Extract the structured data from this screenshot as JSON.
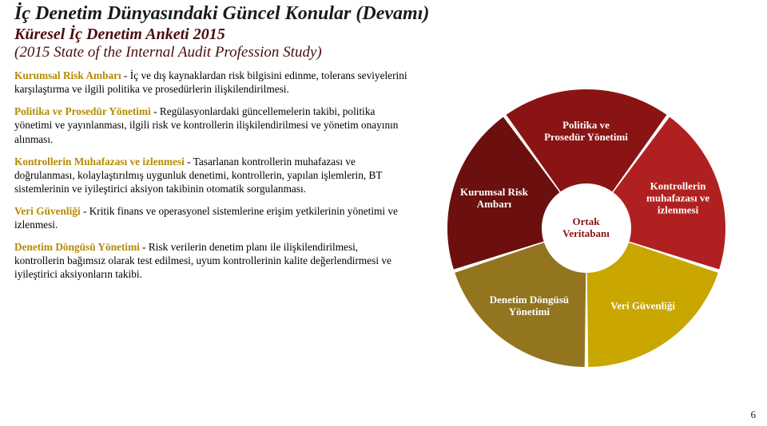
{
  "title": "İç Denetim Dünyasındaki Güncel Konular (Devamı)",
  "subtitle": "Küresel İç Denetim Anketi 2015",
  "subtitle2": "(2015 State of the Internal Audit  Profession Study)",
  "paragraphs": [
    {
      "lead": "Kurumsal Risk Ambarı",
      "body": " - İç ve dış kaynaklardan risk bilgisini edinme,  tolerans seviyelerini karşılaştırma ve ilgili politika ve prosedürlerin ilişkilendirilmesi."
    },
    {
      "lead": "Politika ve Prosedür Yönetimi",
      "body": " - Regülasyonlardaki güncellemelerin takibi, politika yönetimi ve yayınlanması, ilgili risk ve kontrollerin ilişkilendirilmesi ve yönetim onayının alınması."
    },
    {
      "lead": "Kontrollerin Muhafazası ve izlenmesi",
      "body": " - Tasarlanan kontrollerin muhafazası ve doğrulanması, kolaylaştırılmış uygunluk denetimi, kontrollerin, yapılan işlemlerin, BT sistemlerinin ve iyileştirici aksiyon takibinin otomatik sorgulanması."
    },
    {
      "lead": "Veri Güvenliği",
      "body": " - Kritik finans ve operasyonel sistemlerine erişim yetkilerinin yönetimi ve izlenmesi."
    },
    {
      "lead": "Denetim Döngüsü Yönetimi",
      "body": " - Risk verilerin denetim planı ile ilişkilendirilmesi, kontrollerin bağımsız olarak test edilmesi, uyum  kontrollerinin kalite değerlendirmesi ve iyileştirici aksiyonların takibi."
    }
  ],
  "chart": {
    "type": "pie",
    "center_label": "Ortak\nVeritabanı",
    "outer_radius": 174,
    "inner_radius": 56,
    "gap_deg": 1.5,
    "background_color": "#ffffff",
    "label_color": "#ffffff",
    "label_fontsize": 13,
    "center_color": "#8a1414",
    "segments": [
      {
        "label": "Kurumsal Risk Ambarı",
        "color": "#6b0f0f"
      },
      {
        "label": "Politika ve Prosedür Yönetimi",
        "color": "#8a1414"
      },
      {
        "label": "Kontrollerin muhafazası ve izlenmesi",
        "color": "#b02020"
      },
      {
        "label": "Veri Güvenliği",
        "color": "#c9a600"
      },
      {
        "label": "Denetim Döngüsü Yönetimi",
        "color": "#93751f"
      }
    ]
  },
  "page_number": "6"
}
